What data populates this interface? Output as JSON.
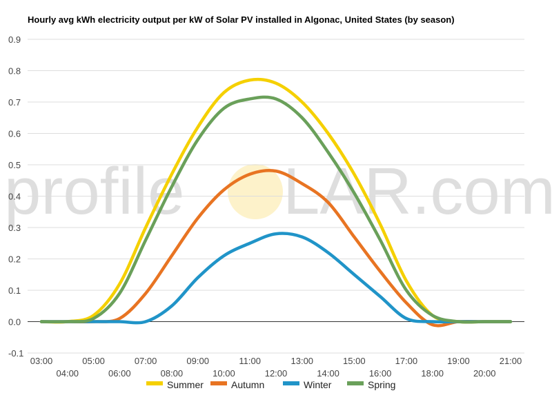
{
  "chart_data": {
    "type": "line",
    "title": "Hourly avg kWh electricity output per kW of Solar PV installed in Algonac, United States (by season)",
    "xlabel": "",
    "ylabel": "",
    "x": [
      "03:00",
      "04:00",
      "05:00",
      "06:00",
      "07:00",
      "08:00",
      "09:00",
      "10:00",
      "11:00",
      "12:00",
      "13:00",
      "14:00",
      "15:00",
      "16:00",
      "17:00",
      "18:00",
      "19:00",
      "20:00",
      "21:00"
    ],
    "yticks": [
      "-0.1",
      "0.0",
      "0.1",
      "0.2",
      "0.3",
      "0.4",
      "0.5",
      "0.6",
      "0.7",
      "0.8",
      "0.9"
    ],
    "ylim": [
      -0.1,
      0.9
    ],
    "grid": true,
    "legend_position": "bottom",
    "series": [
      {
        "name": "Summer",
        "color": "#f5d000",
        "values": [
          0.0,
          0.0,
          0.02,
          0.12,
          0.3,
          0.47,
          0.62,
          0.73,
          0.77,
          0.76,
          0.7,
          0.6,
          0.47,
          0.31,
          0.13,
          0.02,
          0.0,
          0.0,
          0.0
        ]
      },
      {
        "name": "Autumn",
        "color": "#e87422",
        "values": [
          0.0,
          0.0,
          0.0,
          0.01,
          0.09,
          0.21,
          0.33,
          0.42,
          0.47,
          0.48,
          0.44,
          0.38,
          0.27,
          0.16,
          0.06,
          -0.01,
          0.0,
          0.0,
          0.0
        ]
      },
      {
        "name": "Winter",
        "color": "#2094c8",
        "values": [
          0.0,
          0.0,
          0.0,
          0.0,
          0.0,
          0.05,
          0.14,
          0.21,
          0.25,
          0.28,
          0.27,
          0.22,
          0.15,
          0.08,
          0.01,
          0.0,
          0.0,
          0.0,
          0.0
        ]
      },
      {
        "name": "Spring",
        "color": "#6aa05a",
        "values": [
          0.0,
          0.0,
          0.01,
          0.09,
          0.26,
          0.43,
          0.58,
          0.68,
          0.71,
          0.71,
          0.65,
          0.54,
          0.41,
          0.26,
          0.1,
          0.02,
          0.0,
          0.0,
          0.0
        ]
      }
    ]
  },
  "watermark": {
    "left": "profile",
    "right": "LAR.com"
  }
}
